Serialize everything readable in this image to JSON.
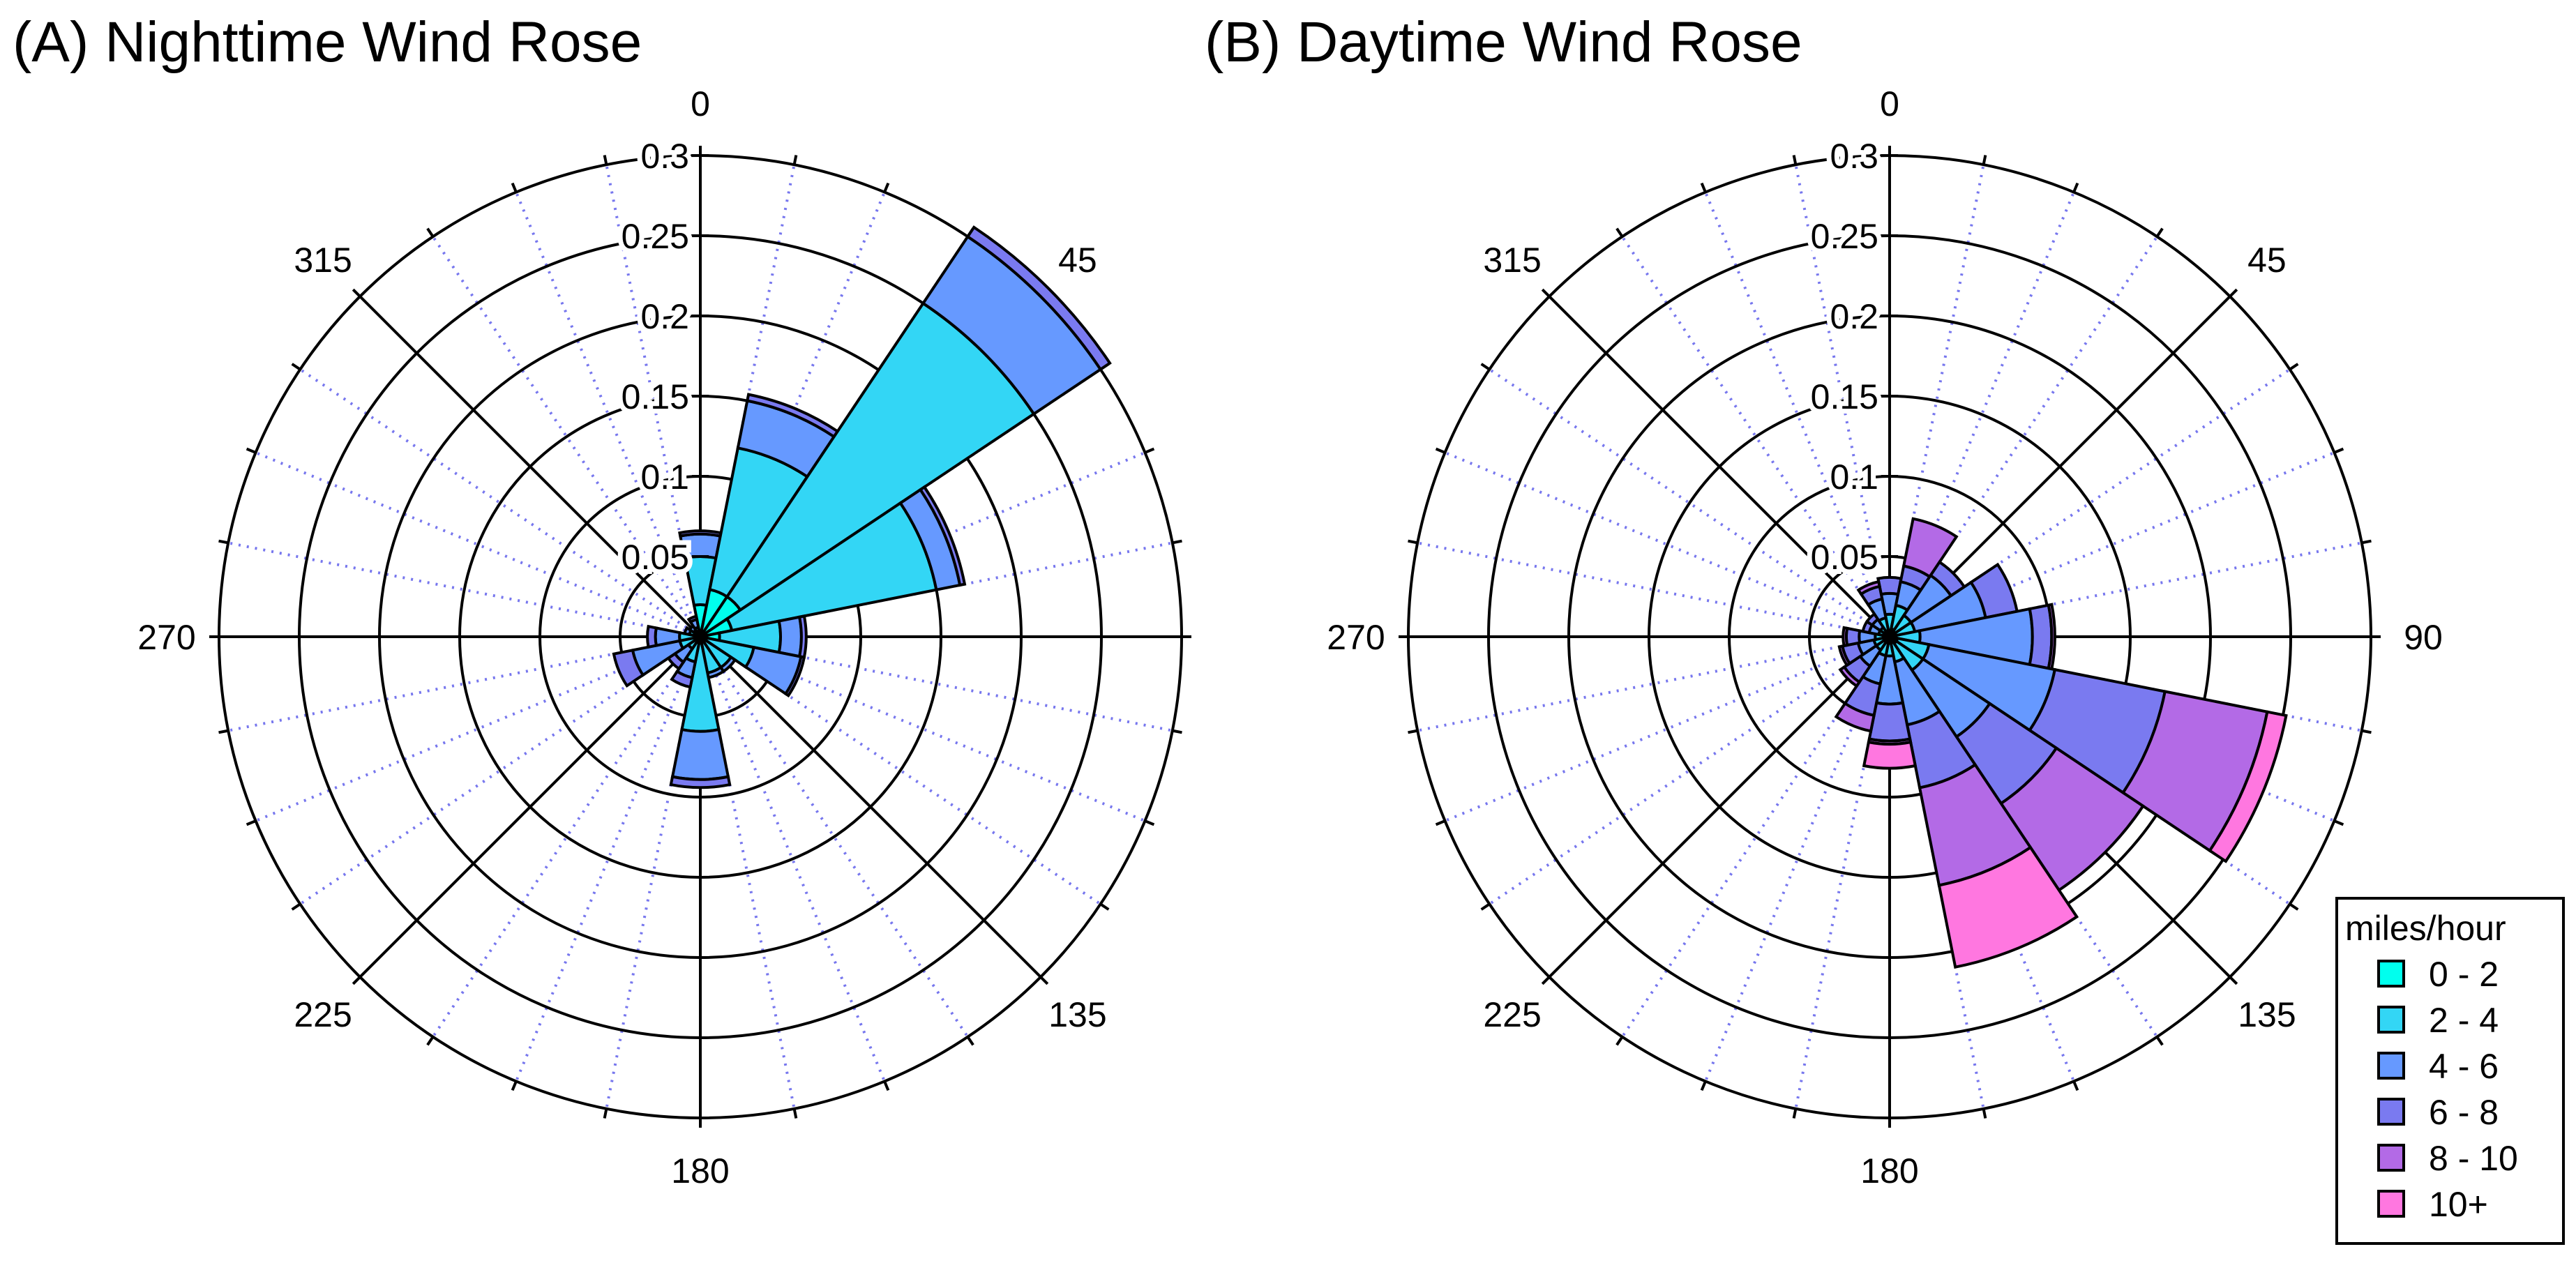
{
  "chart_data": [
    {
      "type": "wind-rose",
      "title": "(A) Nighttime Wind Rose",
      "direction_labels": [
        "0",
        "45",
        "135",
        "180",
        "225",
        "270",
        "315"
      ],
      "radial_ticks": [
        0.05,
        0.1,
        0.15,
        0.2,
        0.25,
        0.3
      ],
      "radial_tick_labels": [
        "0.05",
        "0.1",
        "0.15",
        "0.2",
        "0.25",
        "0.3"
      ],
      "rlim": [
        0,
        0.3
      ],
      "grid": true,
      "sectors_deg": [
        0,
        22.5,
        45,
        67.5,
        90,
        112.5,
        135,
        157.5,
        180,
        202.5,
        225,
        247.5,
        270,
        292.5,
        315,
        337.5
      ],
      "series": [
        {
          "name": "0 - 2",
          "values": [
            0.02,
            0.03,
            0.03,
            0.02,
            0.012,
            0.004,
            0.003,
            0.003,
            0.004,
            0.004,
            0.003,
            0.003,
            0.003,
            0.002,
            0.002,
            0.002
          ]
        },
        {
          "name": "2 - 4",
          "values": [
            0.03,
            0.09,
            0.22,
            0.13,
            0.038,
            0.03,
            0.02,
            0.02,
            0.055,
            0.012,
            0.006,
            0.01,
            0.01,
            0.005,
            0.003,
            0.004
          ]
        },
        {
          "name": "4 - 6",
          "values": [
            0.014,
            0.03,
            0.05,
            0.015,
            0.013,
            0.03,
            0.003,
            0.003,
            0.03,
            0.01,
            0.01,
            0.03,
            0.015,
            0.003,
            0.003,
            0.005
          ]
        },
        {
          "name": "6 - 8",
          "values": [
            0.002,
            0.004,
            0.007,
            0.003,
            0.003,
            0.002,
            0.0,
            0.0,
            0.005,
            0.006,
            0.005,
            0.012,
            0.005,
            0.0,
            0.0,
            0.002
          ]
        },
        {
          "name": "8 - 10",
          "values": [
            0,
            0,
            0,
            0,
            0,
            0,
            0,
            0,
            0,
            0,
            0,
            0,
            0,
            0,
            0,
            0
          ]
        },
        {
          "name": "10+",
          "values": [
            0,
            0,
            0,
            0,
            0,
            0,
            0,
            0,
            0,
            0,
            0,
            0,
            0,
            0,
            0,
            0
          ]
        }
      ]
    },
    {
      "type": "wind-rose",
      "title": "(B) Daytime Wind Rose",
      "direction_labels": [
        "0",
        "45",
        "90",
        "135",
        "180",
        "225",
        "270",
        "315"
      ],
      "radial_ticks": [
        0.05,
        0.1,
        0.15,
        0.2,
        0.25,
        0.3
      ],
      "radial_tick_labels": [
        "0.05",
        "0.1",
        "0.15",
        "0.2",
        "0.25",
        "0.3"
      ],
      "rlim": [
        0,
        0.3
      ],
      "grid": true,
      "sectors_deg": [
        0,
        22.5,
        45,
        67.5,
        90,
        112.5,
        135,
        157.5,
        180,
        202.5,
        225,
        247.5,
        270,
        292.5,
        315,
        337.5
      ],
      "series": [
        {
          "name": "0 - 2",
          "values": [
            0.004,
            0.005,
            0.004,
            0.004,
            0.004,
            0.005,
            0.005,
            0.004,
            0.004,
            0.004,
            0.004,
            0.004,
            0.004,
            0.003,
            0.003,
            0.004
          ]
        },
        {
          "name": "2 - 4",
          "values": [
            0.01,
            0.015,
            0.012,
            0.012,
            0.015,
            0.02,
            0.02,
            0.012,
            0.008,
            0.008,
            0.006,
            0.006,
            0.005,
            0.004,
            0.004,
            0.008
          ]
        },
        {
          "name": "4 - 6",
          "values": [
            0.013,
            0.015,
            0.03,
            0.045,
            0.07,
            0.08,
            0.05,
            0.04,
            0.03,
            0.018,
            0.012,
            0.01,
            0.01,
            0.006,
            0.006,
            0.012
          ]
        },
        {
          "name": "6 - 8",
          "values": [
            0.01,
            0.01,
            0.01,
            0.02,
            0.012,
            0.07,
            0.05,
            0.04,
            0.023,
            0.02,
            0.012,
            0.01,
            0.008,
            0.004,
            0.004,
            0.008
          ]
        },
        {
          "name": "8 - 10",
          "values": [
            0.0,
            0.03,
            0.0,
            0.0,
            0.002,
            0.065,
            0.065,
            0.062,
            0.002,
            0.01,
            0.003,
            0.002,
            0.002,
            0.0,
            0.0,
            0.003
          ]
        },
        {
          "name": "10+",
          "values": [
            0,
            0,
            0,
            0,
            0,
            0.012,
            0.0,
            0.052,
            0.015,
            0,
            0,
            0,
            0,
            0,
            0,
            0
          ]
        }
      ]
    }
  ],
  "legend": {
    "title": "miles/hour",
    "items": [
      {
        "label": "0 - 2",
        "color": "#00ffee"
      },
      {
        "label": "2 - 4",
        "color": "#33d6f5"
      },
      {
        "label": "4 - 6",
        "color": "#6699ff"
      },
      {
        "label": "6 - 8",
        "color": "#7a7af0"
      },
      {
        "label": "8 - 10",
        "color": "#b36ae6"
      },
      {
        "label": "10+",
        "color": "#ff77e0"
      }
    ]
  },
  "colors": {
    "grid_circle": "#000000",
    "grid_spoke_dotted": "#7777ee",
    "wedge_outline": "#000000"
  }
}
